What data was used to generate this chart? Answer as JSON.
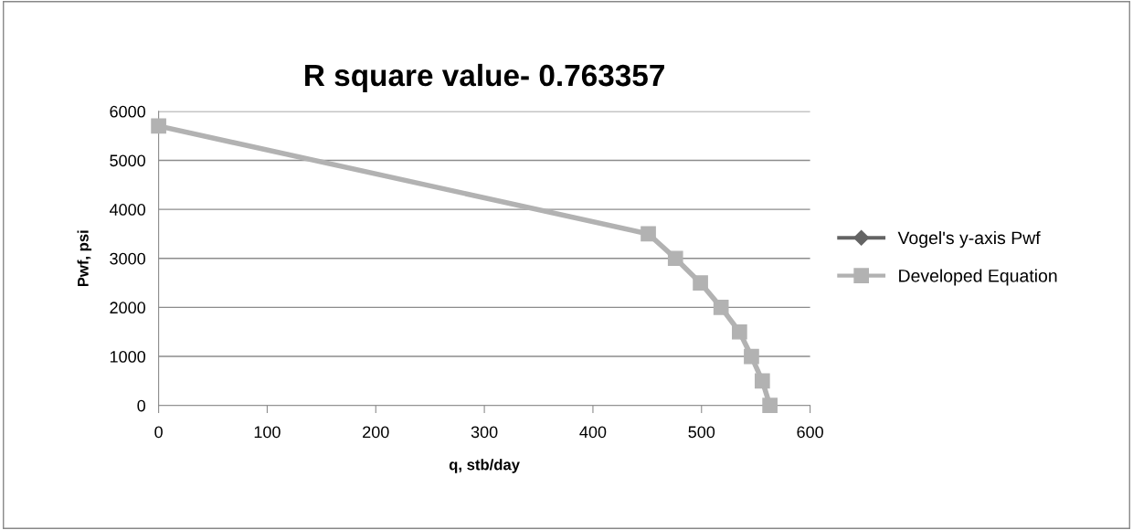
{
  "chart_data": {
    "type": "line",
    "title": "R square value- 0.763357",
    "xlabel": "q, stb/day",
    "ylabel": "Pwf, psi",
    "x": [
      0,
      451,
      476,
      499,
      518,
      535,
      546,
      556,
      563
    ],
    "series": [
      {
        "name": "Vogel's y-axis Pwf",
        "color": "#646464",
        "marker": "diamond",
        "values": [
          null,
          null,
          null,
          null,
          null,
          null,
          null,
          null,
          null
        ]
      },
      {
        "name": "Developed Equation",
        "color": "#b2b2b2",
        "marker": "square",
        "values": [
          5700,
          3500,
          3000,
          2500,
          2000,
          1500,
          1000,
          500,
          0
        ]
      }
    ],
    "xlim": [
      0,
      600
    ],
    "xticks": [
      0,
      100,
      200,
      300,
      400,
      500,
      600
    ],
    "ylim": [
      0,
      6000
    ],
    "yticks": [
      0,
      1000,
      2000,
      3000,
      4000,
      5000,
      6000
    ],
    "grid": "y",
    "legend": "right"
  }
}
